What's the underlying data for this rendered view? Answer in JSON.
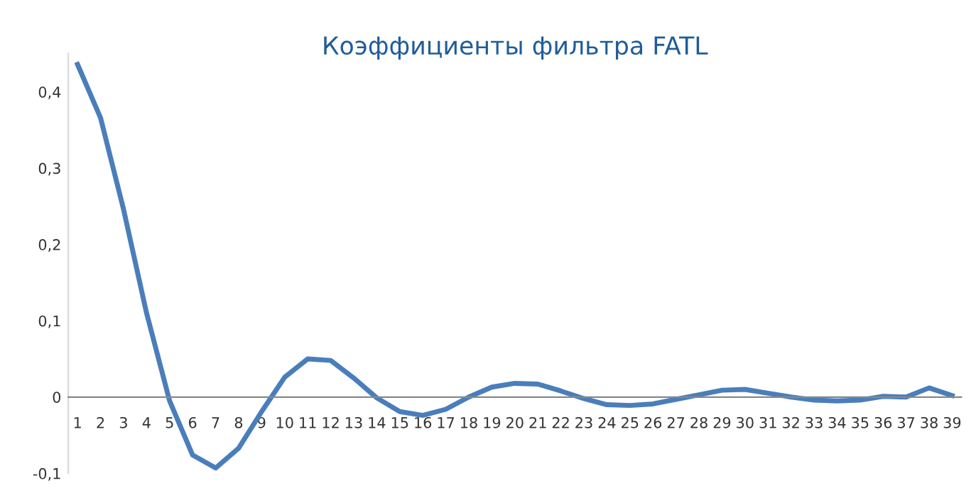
{
  "chart_data": {
    "type": "line",
    "title": "Коэффициенты фильтра FATL",
    "categories": [
      "1",
      "2",
      "3",
      "4",
      "5",
      "6",
      "7",
      "8",
      "9",
      "10",
      "11",
      "12",
      "13",
      "14",
      "15",
      "16",
      "17",
      "18",
      "19",
      "20",
      "21",
      "22",
      "23",
      "24",
      "25",
      "26",
      "27",
      "28",
      "29",
      "30",
      "31",
      "32",
      "33",
      "34",
      "35",
      "36",
      "37",
      "38",
      "39"
    ],
    "series": [
      {
        "color": "#4a7ebb",
        "values": [
          0.436,
          0.366,
          0.246,
          0.11,
          -0.005,
          -0.076,
          -0.093,
          -0.067,
          -0.019,
          0.026,
          0.05,
          0.048,
          0.025,
          -0.001,
          -0.019,
          -0.024,
          -0.016,
          0.0,
          0.013,
          0.018,
          0.017,
          0.008,
          -0.002,
          -0.01,
          -0.011,
          -0.009,
          -0.003,
          0.003,
          0.009,
          0.01,
          0.005,
          0.0,
          -0.004,
          -0.005,
          -0.004,
          0.001,
          0.0,
          0.012,
          0.002
        ]
      }
    ],
    "ylim": [
      -0.1,
      0.45
    ],
    "yticks": [
      {
        "value": -0.1,
        "label": "-0,1"
      },
      0,
      {
        "value": 0.1,
        "label": "0,1"
      },
      {
        "value": 0.2,
        "label": "0,2"
      },
      {
        "value": 0.3,
        "label": "0,3"
      },
      {
        "value": 0.4,
        "label": "0,4"
      }
    ],
    "grid": false,
    "legend": false,
    "marker": "none",
    "line_style": "solid"
  }
}
